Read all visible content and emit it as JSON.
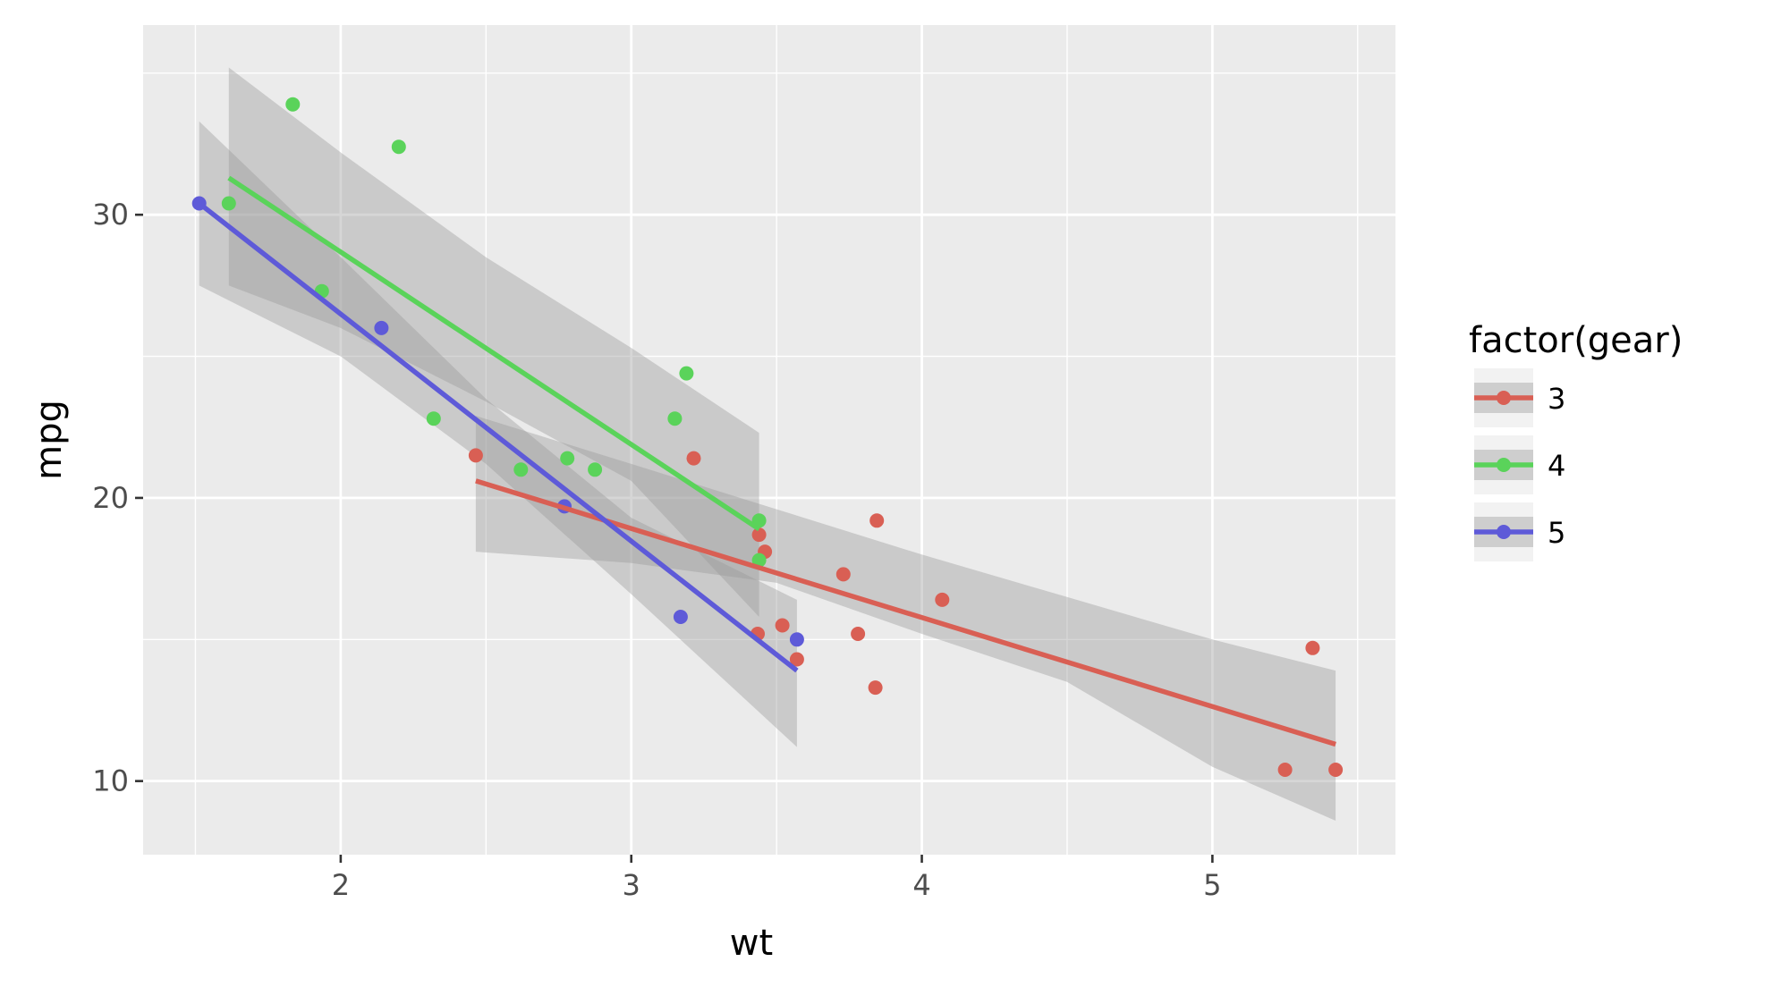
{
  "chart_data": {
    "type": "scatter",
    "xlabel": "wt",
    "ylabel": "mpg",
    "xlim": [
      1.32,
      5.63
    ],
    "ylim": [
      7.4,
      36.7
    ],
    "x_ticks": [
      2,
      3,
      4,
      5
    ],
    "y_ticks": [
      10,
      20,
      30
    ],
    "x_tick_labels": [
      "2",
      "3",
      "4",
      "5"
    ],
    "y_tick_labels": [
      "10",
      "20",
      "30"
    ],
    "grid": true,
    "legend": {
      "title": "factor(gear)",
      "position": "right"
    },
    "series": [
      {
        "name": "3",
        "color": "#d95f54",
        "points": [
          [
            2.465,
            21.5
          ],
          [
            3.215,
            21.4
          ],
          [
            3.44,
            18.7
          ],
          [
            3.46,
            18.1
          ],
          [
            3.57,
            14.3
          ],
          [
            4.07,
            16.4
          ],
          [
            3.73,
            17.3
          ],
          [
            3.78,
            15.2
          ],
          [
            5.25,
            10.4
          ],
          [
            5.424,
            10.4
          ],
          [
            5.345,
            14.7
          ],
          [
            3.52,
            15.5
          ],
          [
            3.435,
            15.2
          ],
          [
            3.84,
            13.3
          ],
          [
            3.845,
            19.2
          ]
        ],
        "fit": {
          "x_start": 2.465,
          "x_end": 5.424,
          "y_start": 20.6,
          "y_end": 11.3
        },
        "band": [
          [
            2.465,
            22.9,
            18.1
          ],
          [
            3.0,
            21.2,
            17.7
          ],
          [
            3.5,
            19.6,
            17.0
          ],
          [
            4.0,
            18.0,
            15.2
          ],
          [
            4.5,
            16.5,
            13.5
          ],
          [
            5.0,
            15.0,
            10.5
          ],
          [
            5.424,
            13.9,
            8.6
          ]
        ]
      },
      {
        "name": "4",
        "color": "#5ad35a",
        "points": [
          [
            2.62,
            21.0
          ],
          [
            2.875,
            21.0
          ],
          [
            2.32,
            22.8
          ],
          [
            3.19,
            24.4
          ],
          [
            3.15,
            22.8
          ],
          [
            3.44,
            19.2
          ],
          [
            3.44,
            17.8
          ],
          [
            2.2,
            32.4
          ],
          [
            1.615,
            30.4
          ],
          [
            1.835,
            33.9
          ],
          [
            1.935,
            27.3
          ],
          [
            2.78,
            21.4
          ]
        ],
        "fit": {
          "x_start": 1.615,
          "x_end": 3.44,
          "y_start": 31.3,
          "y_end": 18.9
        },
        "band": [
          [
            1.615,
            35.2,
            27.5
          ],
          [
            2.0,
            32.2,
            26.0
          ],
          [
            2.5,
            28.5,
            23.4
          ],
          [
            3.0,
            25.3,
            20.6
          ],
          [
            3.44,
            22.3,
            15.8
          ]
        ]
      },
      {
        "name": "5",
        "color": "#5e5ad8",
        "points": [
          [
            2.14,
            26.0
          ],
          [
            1.513,
            30.4
          ],
          [
            3.17,
            15.8
          ],
          [
            2.77,
            19.7
          ],
          [
            3.57,
            15.0
          ]
        ],
        "fit": {
          "x_start": 1.513,
          "x_end": 3.57,
          "y_start": 30.4,
          "y_end": 13.9
        },
        "band": [
          [
            1.513,
            33.3,
            27.5
          ],
          [
            2.0,
            28.5,
            25.0
          ],
          [
            2.5,
            23.5,
            21.2
          ],
          [
            3.0,
            19.3,
            16.6
          ],
          [
            3.57,
            16.4,
            11.2
          ]
        ]
      }
    ]
  },
  "colors": {
    "panel_background": "#ebebeb",
    "grid": "#ffffff",
    "band_fill": "#999999"
  }
}
